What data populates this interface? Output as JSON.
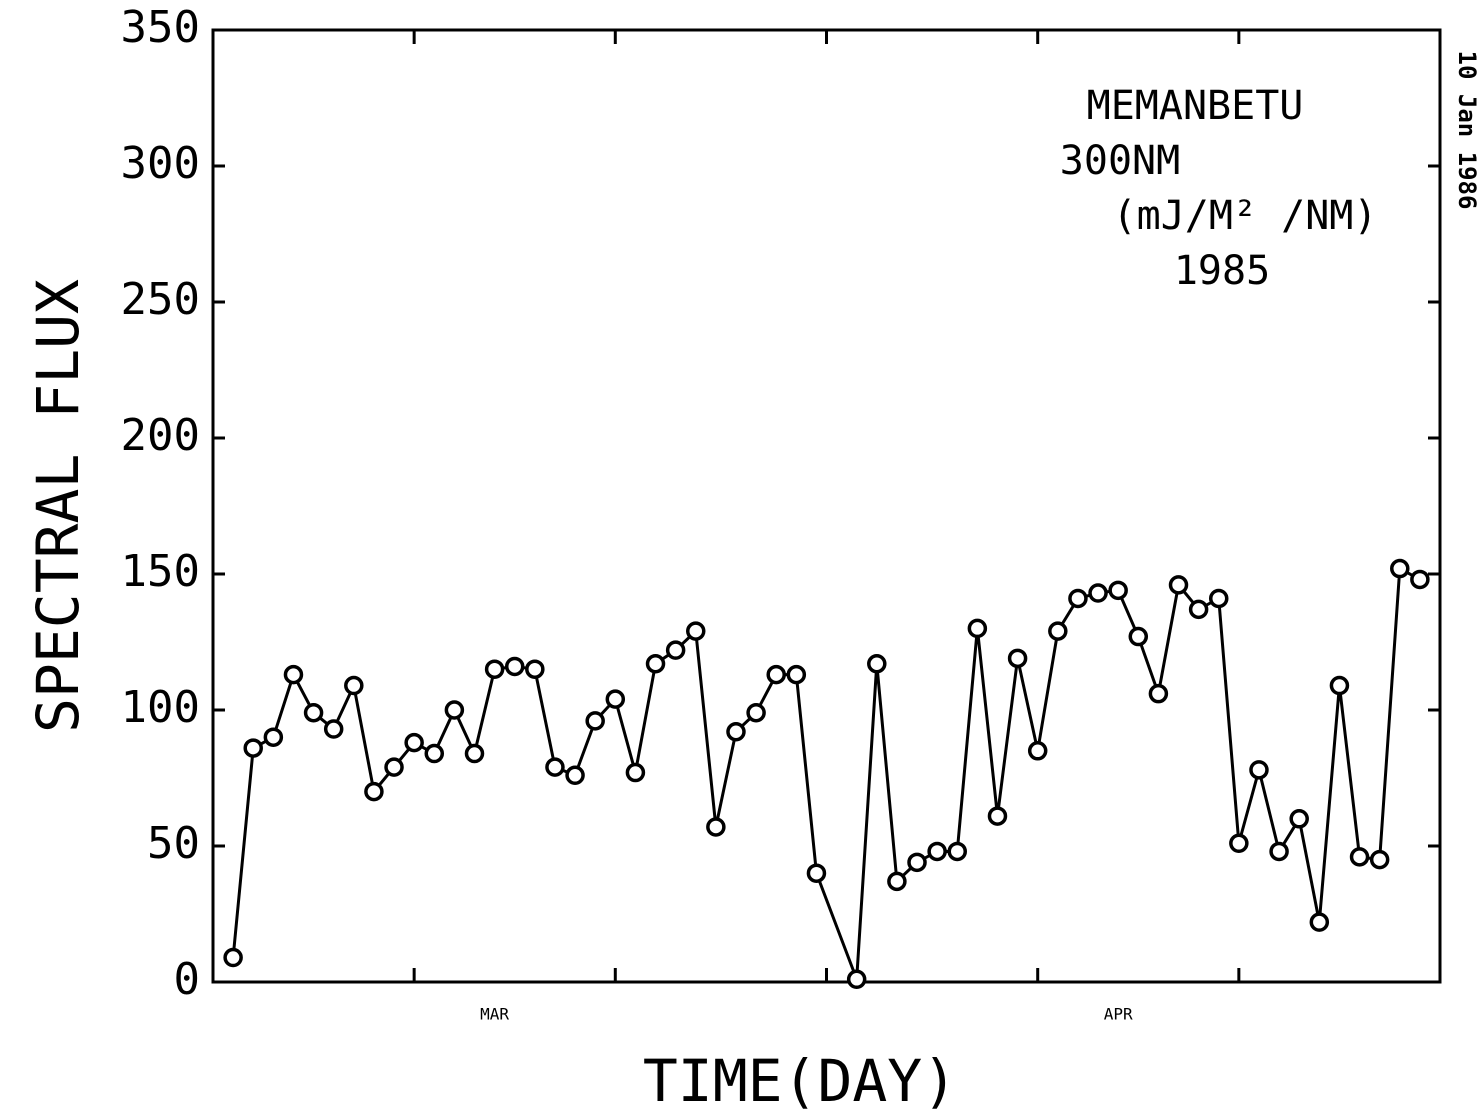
{
  "chart_data": {
    "type": "line",
    "y_label": "SPECTRAL FLUX",
    "x_label": "TIME(DAY)",
    "annotations": [
      "MEMANBETU",
      "300NM",
      "(mJ/M² /NM)",
      "1985"
    ],
    "side_note": "10 Jan 1986",
    "x": [
      1,
      2,
      3,
      4,
      5,
      6,
      7,
      8,
      9,
      10,
      11,
      12,
      13,
      14,
      15,
      16,
      17,
      18,
      19,
      20,
      21,
      22,
      23,
      24,
      25,
      26,
      27,
      28,
      29,
      30,
      32,
      33,
      34,
      35,
      36,
      37,
      38,
      39,
      40,
      41,
      42,
      43,
      44,
      45,
      46,
      47,
      48,
      49,
      50,
      51,
      52,
      53,
      54,
      55,
      56,
      57,
      58,
      59,
      60
    ],
    "series": [
      {
        "name": "300NM",
        "color": "#000000",
        "values": [
          9,
          86,
          90,
          113,
          99,
          93,
          109,
          70,
          79,
          88,
          84,
          100,
          84,
          115,
          116,
          115,
          79,
          76,
          96,
          104,
          77,
          117,
          122,
          129,
          57,
          92,
          99,
          113,
          113,
          40,
          1,
          117,
          37,
          44,
          48,
          48,
          130,
          61,
          119,
          85,
          129,
          141,
          143,
          144,
          127,
          106,
          146,
          137,
          141,
          51,
          78,
          48,
          60,
          22,
          109,
          46,
          45,
          152,
          148
        ]
      }
    ],
    "xlim": [
      0,
      61
    ],
    "xticks": [
      10,
      20,
      30.5,
      41,
      51
    ],
    "month_labels": [
      {
        "value": 14,
        "label": "MAR"
      },
      {
        "value": 45,
        "label": "APR"
      }
    ],
    "ylim": [
      0,
      350
    ],
    "yticks": [
      0,
      50,
      100,
      150,
      200,
      250,
      300,
      350
    ],
    "grid": false
  }
}
